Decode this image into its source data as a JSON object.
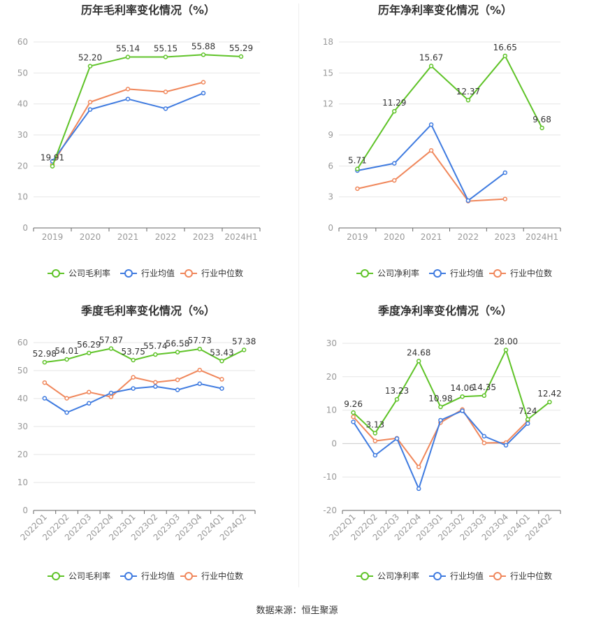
{
  "colors": {
    "company": "#5fc328",
    "avg": "#3f7be0",
    "median": "#f0875b",
    "grid": "#e6e6e6",
    "axis": "#999999",
    "text": "#333333"
  },
  "legend": {
    "gross": "公司毛利率",
    "net": "公司净利率",
    "avg": "行业均值",
    "median": "行业中位数"
  },
  "source_text": "数据来源：恒生聚源",
  "chart_data": [
    {
      "type": "line",
      "title": "历年毛利率变化情况（%）",
      "categories": [
        "2019",
        "2020",
        "2021",
        "2022",
        "2023",
        "2024H1"
      ],
      "ylim": [
        0,
        60
      ],
      "yticks": [
        0,
        10,
        20,
        30,
        40,
        50,
        60
      ],
      "rotate_x": false,
      "series": [
        {
          "name": "公司毛利率",
          "key": "company",
          "values": [
            19.91,
            52.2,
            55.14,
            55.15,
            55.88,
            55.29
          ],
          "labels": [
            "19.91",
            "52.20",
            "55.14",
            "55.15",
            "55.88",
            "55.29"
          ]
        },
        {
          "name": "行业均值",
          "key": "avg",
          "values": [
            21.5,
            38.2,
            41.6,
            38.5,
            43.5,
            null
          ]
        },
        {
          "name": "行业中位数",
          "key": "median",
          "values": [
            20.5,
            40.6,
            44.8,
            43.9,
            47.0,
            null
          ]
        }
      ]
    },
    {
      "type": "line",
      "title": "历年净利率变化情况（%）",
      "categories": [
        "2019",
        "2020",
        "2021",
        "2022",
        "2023",
        "2024H1"
      ],
      "ylim": [
        0,
        18
      ],
      "yticks": [
        0,
        3,
        6,
        9,
        12,
        15,
        18
      ],
      "rotate_x": false,
      "series": [
        {
          "name": "公司净利率",
          "key": "company",
          "values": [
            5.71,
            11.29,
            15.67,
            12.37,
            16.65,
            9.68
          ],
          "labels": [
            "5.71",
            "11.29",
            "15.67",
            "12.37",
            "16.65",
            "9.68"
          ]
        },
        {
          "name": "行业均值",
          "key": "avg",
          "values": [
            5.55,
            6.25,
            10.0,
            2.65,
            5.35,
            null
          ]
        },
        {
          "name": "行业中位数",
          "key": "median",
          "values": [
            3.8,
            4.6,
            7.5,
            2.6,
            2.8,
            null
          ]
        }
      ]
    },
    {
      "type": "line",
      "title": "季度毛利率变化情况（%）",
      "categories": [
        "2022Q1",
        "2022Q2",
        "2022Q3",
        "2022Q4",
        "2023Q1",
        "2023Q2",
        "2023Q3",
        "2023Q4",
        "2024Q1",
        "2024Q2"
      ],
      "ylim": [
        0,
        60
      ],
      "yticks": [
        0,
        10,
        20,
        30,
        40,
        50,
        60
      ],
      "rotate_x": true,
      "series": [
        {
          "name": "公司毛利率",
          "key": "company",
          "values": [
            52.98,
            54.01,
            56.29,
            57.87,
            53.75,
            55.74,
            56.58,
            57.73,
            53.43,
            57.38
          ],
          "labels": [
            "52.98",
            "54.01",
            "56.29",
            "57.87",
            "53.75",
            "55.74",
            "56.58",
            "57.73",
            "53.43",
            "57.38"
          ]
        },
        {
          "name": "行业均值",
          "key": "avg",
          "values": [
            40.1,
            35.0,
            38.3,
            42.0,
            43.6,
            44.3,
            43.1,
            45.3,
            43.6,
            null
          ]
        },
        {
          "name": "行业中位数",
          "key": "median",
          "values": [
            45.7,
            40.1,
            42.3,
            40.6,
            47.6,
            45.8,
            46.7,
            50.2,
            46.9,
            null
          ]
        }
      ]
    },
    {
      "type": "line",
      "title": "季度净利率变化情况（%）",
      "categories": [
        "2022Q1",
        "2022Q2",
        "2022Q3",
        "2022Q4",
        "2023Q1",
        "2023Q2",
        "2023Q3",
        "2023Q4",
        "2024Q1",
        "2024Q2"
      ],
      "ylim": [
        -20,
        30
      ],
      "yticks": [
        -20,
        -10,
        0,
        10,
        20,
        30
      ],
      "rotate_x": true,
      "series": [
        {
          "name": "公司净利率",
          "key": "company",
          "values": [
            9.26,
            3.13,
            13.23,
            24.68,
            10.98,
            14.06,
            14.35,
            28.0,
            7.24,
            12.42
          ],
          "labels": [
            "9.26",
            "3.13",
            "13.23",
            "24.68",
            "10.98",
            "14.06",
            "14.35",
            "28.00",
            "7.24",
            "12.42"
          ]
        },
        {
          "name": "行业均值",
          "key": "avg",
          "values": [
            6.5,
            -3.5,
            1.5,
            -13.5,
            7.0,
            9.8,
            2.2,
            -0.5,
            6.0,
            null
          ]
        },
        {
          "name": "行业中位数",
          "key": "median",
          "values": [
            8.0,
            0.8,
            1.6,
            -7.0,
            6.3,
            10.2,
            0.2,
            0.3,
            6.8,
            null
          ]
        }
      ]
    }
  ]
}
